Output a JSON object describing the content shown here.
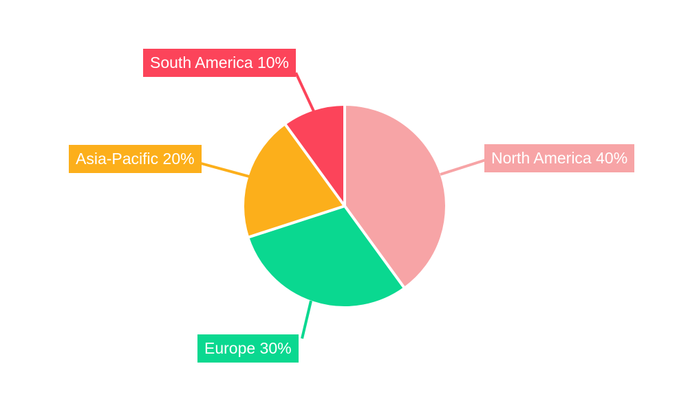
{
  "chart_data": {
    "type": "pie",
    "title": "",
    "legend_position": "none",
    "start_angle": "top",
    "direction": "clockwise",
    "background_color": "#FFFFFF",
    "slice_border_color": "#FFFFFF",
    "label_text_color": "#FFFFFF",
    "slices": [
      {
        "label": "North America",
        "value": 40,
        "color": "#F7A4A6",
        "display_label": "North America 40%"
      },
      {
        "label": "Europe",
        "value": 30,
        "color": "#0AD890",
        "display_label": "Europe 30%"
      },
      {
        "label": "Asia-Pacific",
        "value": 20,
        "color": "#FCAF1B",
        "display_label": "Asia-Pacific 20%"
      },
      {
        "label": "South America",
        "value": 10,
        "color": "#FC445A",
        "display_label": "South America 10%"
      }
    ]
  }
}
